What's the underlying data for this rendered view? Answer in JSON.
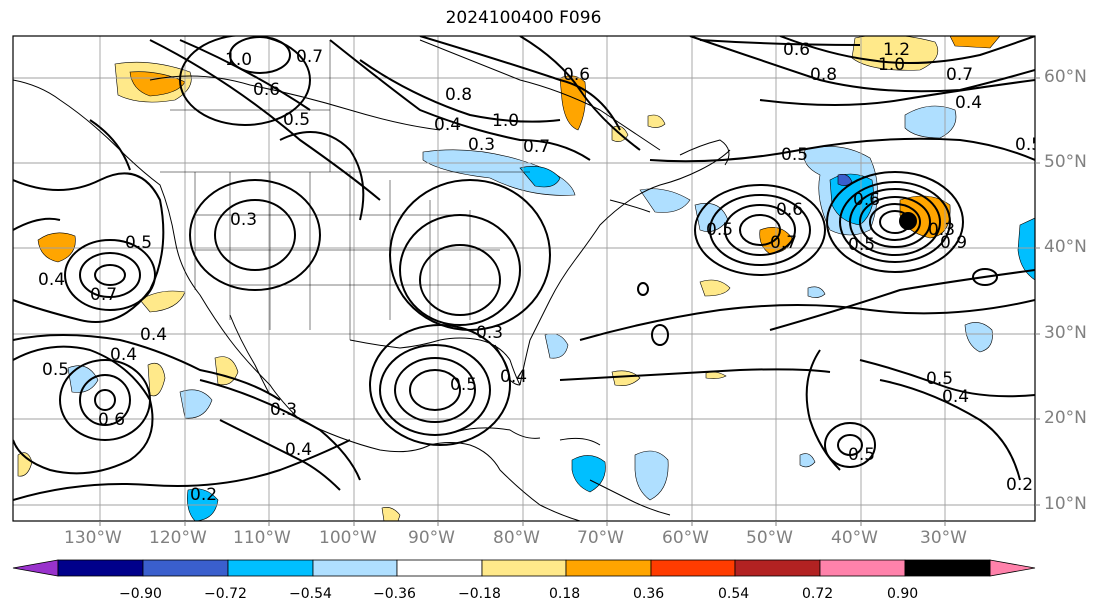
{
  "title": "2024100400 F096",
  "lat_labels": [
    "60°N",
    "50°N",
    "40°N",
    "30°N",
    "20°N",
    "10°N"
  ],
  "lon_labels": [
    "130°W",
    "120°W",
    "110°W",
    "100°W",
    "90°W",
    "80°W",
    "70°W",
    "60°W",
    "50°W",
    "40°W",
    "30°W"
  ],
  "colorbar": {
    "ticks": [
      "−0.90",
      "−0.72",
      "−0.54",
      "−0.36",
      "−0.18",
      "0.18",
      "0.36",
      "0.54",
      "0.72",
      "0.90"
    ],
    "colors": [
      "#9932cc",
      "#00008b",
      "#3a5fcd",
      "#00bfff",
      "#afdfff",
      "#ffffff",
      "#ffe98a",
      "#ffa500",
      "#ff3c00",
      "#b22222",
      "#ff82ab"
    ]
  },
  "contour_labels": [
    "1.0",
    "0.6",
    "0.5",
    "0.7",
    "0.8",
    "0.4",
    "0.3",
    "1.0",
    "0.7",
    "0.6",
    "0.5",
    "0.6",
    "0.8",
    "1.2",
    "1.0",
    "0.7",
    "0.4",
    "0.5",
    "0.5",
    "0.6",
    "0.7",
    "0.5",
    "0.6",
    "0.3",
    "0.9",
    "0.5",
    "0.4",
    "0.7",
    "0.5",
    "0.4",
    "0.6",
    "0.4",
    "0.3",
    "0.4",
    "0.2",
    "0.5",
    "0.3",
    "0.4",
    "0.5",
    "0.4",
    "0.5",
    "0.3",
    "0.2"
  ]
}
